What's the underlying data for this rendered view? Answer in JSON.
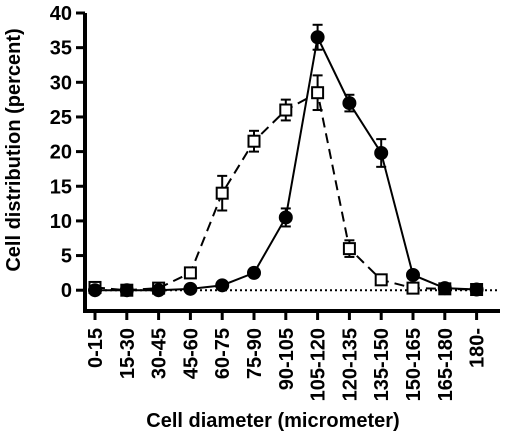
{
  "chart_data": {
    "type": "line",
    "xlabel": "Cell diameter (micrometer)",
    "ylabel": "Cell distribution (percent)",
    "ylim": [
      -3,
      40
    ],
    "yticks": [
      0,
      5,
      10,
      15,
      20,
      25,
      30,
      35,
      40
    ],
    "categories": [
      "0-15",
      "15-30",
      "30-45",
      "45-60",
      "60-75",
      "75-90",
      "90-105",
      "105-120",
      "120-135",
      "135-150",
      "150-165",
      "165-180",
      "180-"
    ],
    "reference_line": {
      "y": 0,
      "style": "dotted"
    },
    "series": [
      {
        "marker": "filled-circle",
        "line": "solid",
        "values": [
          0,
          0,
          0,
          0.2,
          0.7,
          2.5,
          10.5,
          36.5,
          27,
          19.8,
          2.2,
          0.3,
          0.1
        ],
        "errors": [
          0.3,
          0.3,
          0.3,
          0.3,
          0.4,
          0.6,
          1.3,
          1.8,
          1.2,
          2.0,
          0.5,
          0.3,
          0.3
        ]
      },
      {
        "marker": "open-square",
        "line": "dashed",
        "values": [
          0.4,
          0,
          0.3,
          2.5,
          14,
          21.5,
          26,
          28.5,
          6,
          1.5,
          0.3,
          0.2,
          0.1
        ],
        "errors": [
          0.4,
          0.3,
          0.3,
          0.5,
          2.5,
          1.5,
          1.5,
          2.5,
          1.2,
          0.4,
          0.3,
          0.3,
          0.3
        ]
      }
    ]
  }
}
